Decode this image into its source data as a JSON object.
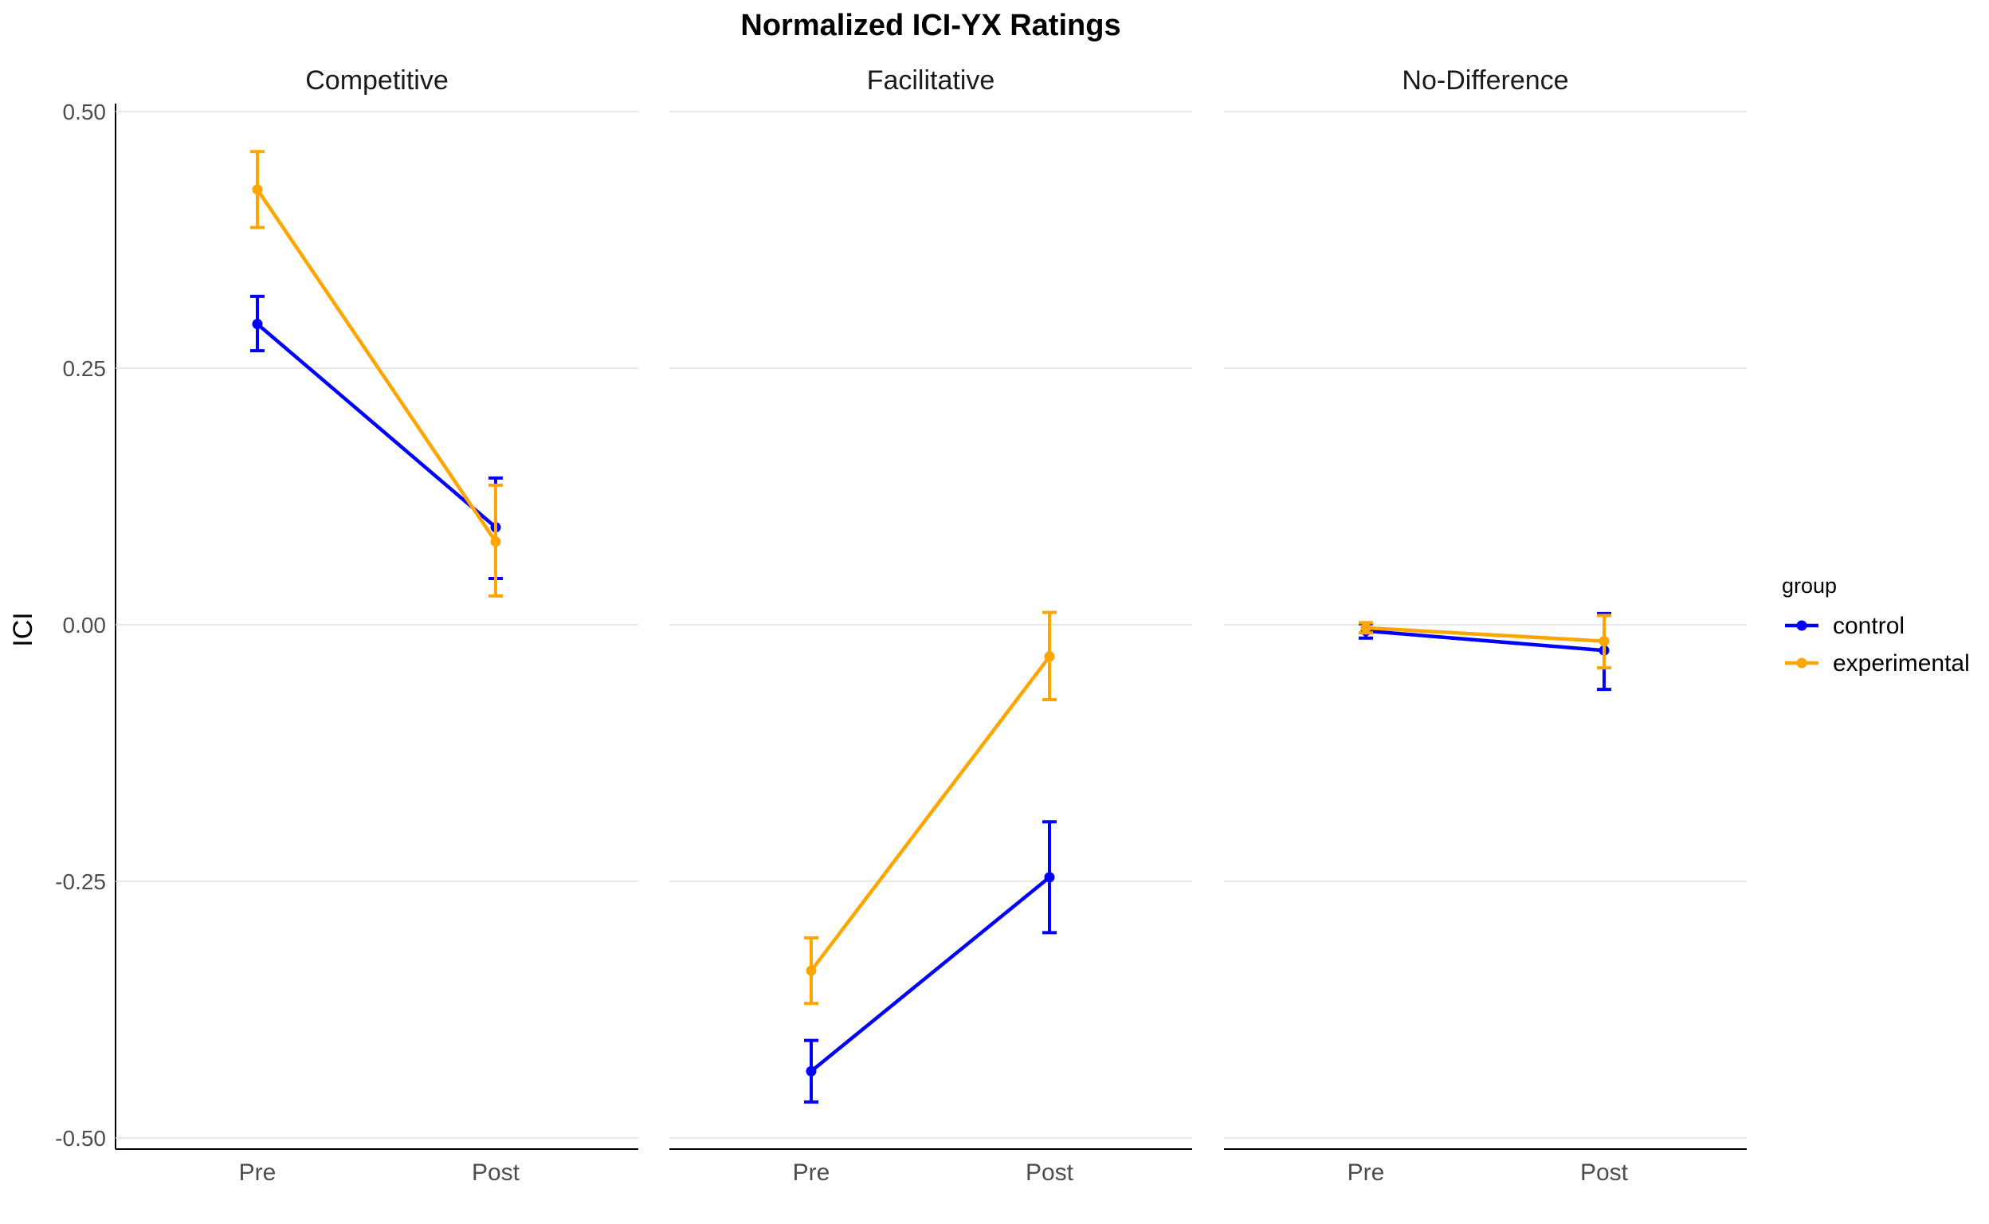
{
  "chart_data": {
    "type": "line",
    "title": "Normalized ICI-YX Ratings",
    "xlabel": "",
    "ylabel": "ICI",
    "ylim": [
      -0.51,
      0.51
    ],
    "y_ticks": [
      0.5,
      0.25,
      0.0,
      -0.25,
      -0.5
    ],
    "y_tick_labels": [
      "0.50",
      "0.25",
      "0.00",
      "-0.25",
      "-0.50"
    ],
    "categories": [
      "Pre",
      "Post"
    ],
    "grid": true,
    "legend": {
      "title": "group",
      "position": "right"
    },
    "series_colors": {
      "control": "#0000ff",
      "experimental": "#ffa500"
    },
    "facets": [
      {
        "title": "Competitive",
        "series": [
          {
            "name": "control",
            "values": [
              0.293,
              0.095
            ],
            "error_low": [
              0.267,
              0.045
            ],
            "error_high": [
              0.32,
              0.143
            ]
          },
          {
            "name": "experimental",
            "values": [
              0.424,
              0.081
            ],
            "error_low": [
              0.387,
              0.028
            ],
            "error_high": [
              0.461,
              0.136
            ]
          }
        ]
      },
      {
        "title": "Facilitative",
        "series": [
          {
            "name": "control",
            "values": [
              -0.435,
              -0.246
            ],
            "error_low": [
              -0.465,
              -0.3
            ],
            "error_high": [
              -0.405,
              -0.192
            ]
          },
          {
            "name": "experimental",
            "values": [
              -0.337,
              -0.031
            ],
            "error_low": [
              -0.369,
              -0.073
            ],
            "error_high": [
              -0.305,
              0.012
            ]
          }
        ]
      },
      {
        "title": "No-Difference",
        "series": [
          {
            "name": "control",
            "values": [
              -0.006,
              -0.025
            ],
            "error_low": [
              -0.013,
              -0.063
            ],
            "error_high": [
              0.001,
              0.011
            ]
          },
          {
            "name": "experimental",
            "values": [
              -0.003,
              -0.016
            ],
            "error_low": [
              -0.008,
              -0.042
            ],
            "error_high": [
              0.002,
              0.009
            ]
          }
        ]
      }
    ]
  }
}
